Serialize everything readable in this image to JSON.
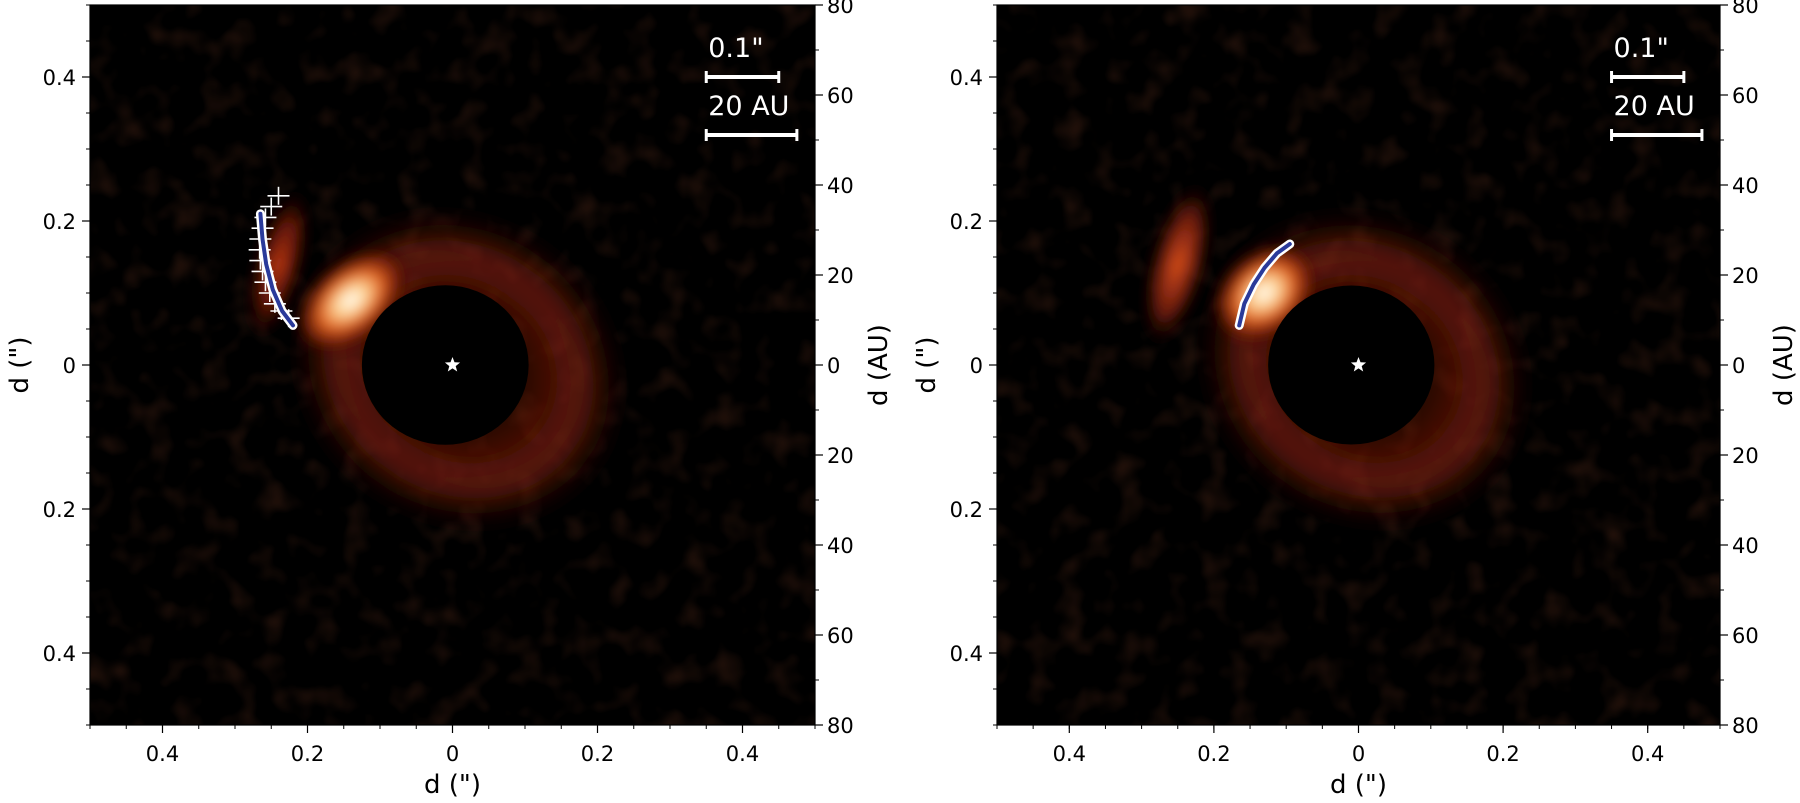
{
  "figure": {
    "panels": [
      "left-panel",
      "right-panel"
    ]
  },
  "colors": {
    "background": "#000000",
    "disk_glow": "#c0401a",
    "disk_bright": "#ffe8c0",
    "fit_curve": "#2a3a9a",
    "points": "#ffffff",
    "mask": "#000000"
  },
  "chart_data": [
    {
      "type": "heatmap",
      "name": "left",
      "title": "",
      "xlabel": "d (\")",
      "ylabel_left": "d (\")",
      "ylabel_right": "d (AU)",
      "xlim": [
        -0.5,
        0.5
      ],
      "ylim": [
        -0.5,
        0.5
      ],
      "x_ticks": [
        -0.4,
        -0.2,
        0,
        0.2,
        0.4
      ],
      "x_tick_labels": [
        "0.4",
        "0.2",
        "0",
        "0.2",
        "0.4"
      ],
      "y_ticks": [
        0.4,
        0.2,
        0,
        -0.2,
        -0.4
      ],
      "y_tick_labels": [
        "0.4",
        "0.2",
        "0",
        "0.2",
        "0.4"
      ],
      "y2_ticks_au": [
        80,
        60,
        40,
        20,
        0,
        -20,
        -40,
        -60,
        -80
      ],
      "y2_tick_labels": [
        "80",
        "60",
        "40",
        "20",
        "0",
        "20",
        "40",
        "60",
        "80"
      ],
      "scalebars": [
        {
          "label": "0.1\"",
          "length_arcsec": 0.1
        },
        {
          "label": "20 AU",
          "length_arcsec": 0.125
        }
      ],
      "star": {
        "x": 0,
        "y": 0
      },
      "fit_curve": {
        "x": [
          -0.265,
          -0.262,
          -0.257,
          -0.248,
          -0.235,
          -0.22
        ],
        "y": [
          0.21,
          0.175,
          0.14,
          0.105,
          0.075,
          0.055
        ]
      },
      "measured_points": {
        "x": [
          -0.24,
          -0.25,
          -0.258,
          -0.262,
          -0.265,
          -0.266,
          -0.265,
          -0.262,
          -0.258,
          -0.252,
          -0.245,
          -0.236,
          -0.226
        ],
        "y": [
          0.235,
          0.22,
          0.205,
          0.19,
          0.175,
          0.16,
          0.145,
          0.13,
          0.115,
          0.1,
          0.085,
          0.075,
          0.065
        ]
      }
    },
    {
      "type": "heatmap",
      "name": "right",
      "title": "",
      "xlabel": "d (\")",
      "ylabel_left": "d (\")",
      "ylabel_right": "d (AU)",
      "xlim": [
        -0.5,
        0.5
      ],
      "ylim": [
        -0.5,
        0.5
      ],
      "x_ticks": [
        -0.4,
        -0.2,
        0,
        0.2,
        0.4
      ],
      "x_tick_labels": [
        "0.4",
        "0.2",
        "0",
        "0.2",
        "0.4"
      ],
      "y_ticks": [
        0.4,
        0.2,
        0,
        -0.2,
        -0.4
      ],
      "y_tick_labels": [
        "0.4",
        "0.2",
        "0",
        "0.2",
        "0.4"
      ],
      "y2_ticks_au": [
        80,
        60,
        40,
        20,
        0,
        -20,
        -40,
        -60,
        -80
      ],
      "y2_tick_labels": [
        "80",
        "60",
        "40",
        "20",
        "0",
        "20",
        "40",
        "60",
        "80"
      ],
      "scalebars": [
        {
          "label": "0.1\"",
          "length_arcsec": 0.1
        },
        {
          "label": "20 AU",
          "length_arcsec": 0.125
        }
      ],
      "star": {
        "x": 0,
        "y": 0
      },
      "fit_curve": {
        "x": [
          -0.165,
          -0.158,
          -0.145,
          -0.13,
          -0.113,
          -0.095
        ],
        "y": [
          0.055,
          0.085,
          0.112,
          0.135,
          0.155,
          0.168
        ]
      }
    }
  ]
}
